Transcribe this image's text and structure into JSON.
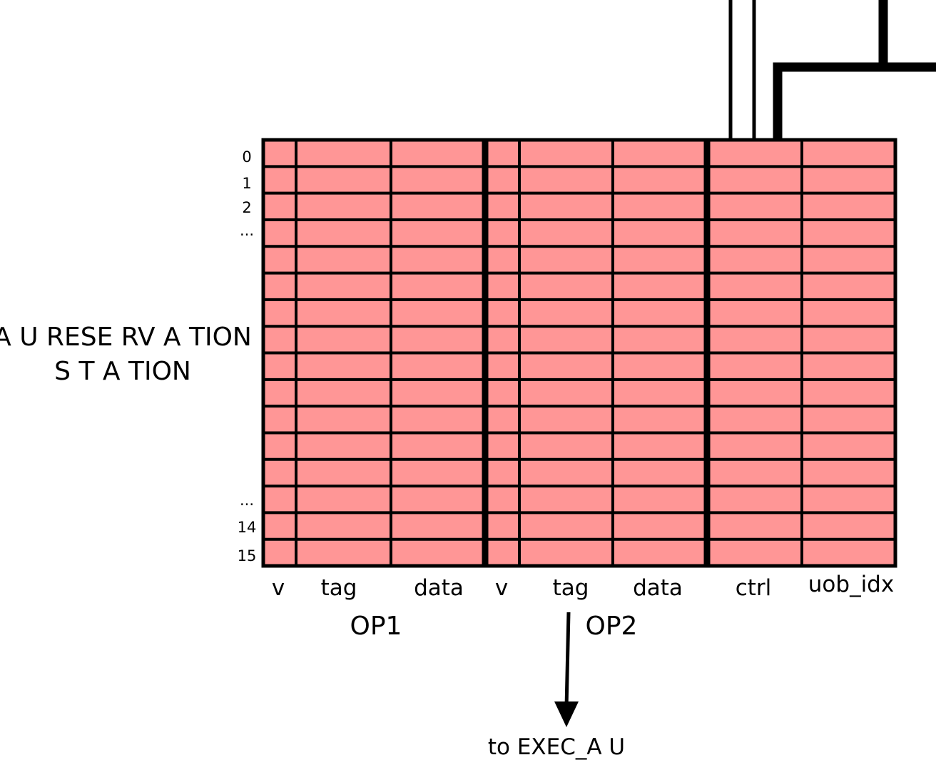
{
  "title_lines": [
    "A U RESE RV A TION",
    "S T A TION"
  ],
  "row_labels": {
    "top": [
      "0",
      "1",
      "2",
      "..."
    ],
    "bottom": [
      "...",
      "14",
      "15"
    ]
  },
  "table": {
    "row_count": 16,
    "cell_color": "#ff9696",
    "border_color": "#000000",
    "columns": [
      "v",
      "tag",
      "data",
      "v",
      "tag",
      "data",
      "ctrl",
      "uob_idx"
    ]
  },
  "groups": [
    "OP1",
    "OP2"
  ],
  "output_label": "to EXEC_A U"
}
